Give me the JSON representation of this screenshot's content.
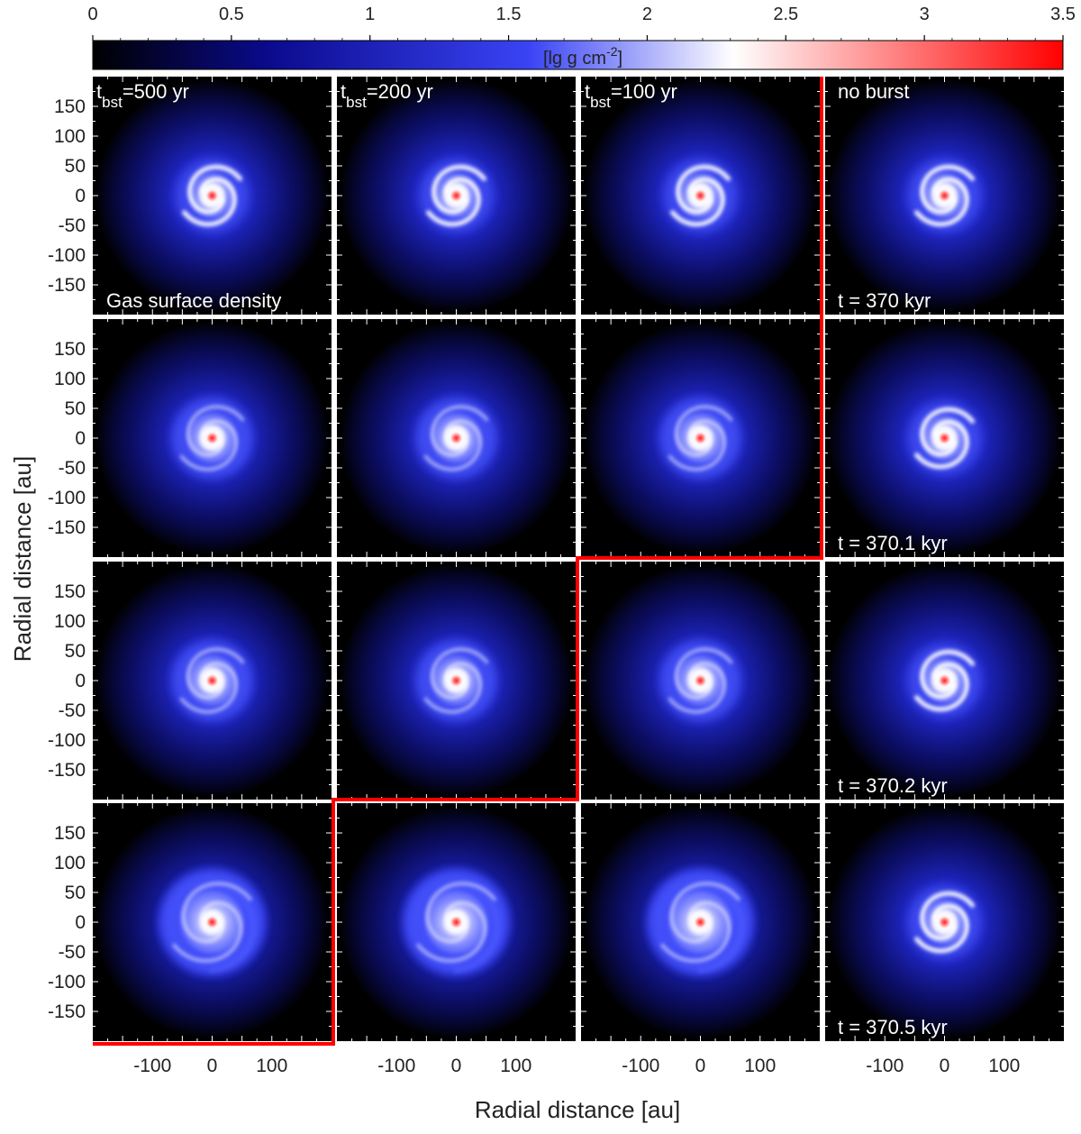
{
  "chart_data": {
    "type": "heatmap",
    "quantity": "Gas surface density",
    "colorbar": {
      "unit_label": "[lg g cm",
      "unit_exponent": "-2",
      "unit_close": "]",
      "ticks": [
        0,
        0.5,
        1,
        1.5,
        2,
        2.5,
        3,
        3.5
      ],
      "tick_labels": [
        "0",
        "0.5",
        "1",
        "1.5",
        "2",
        "2.5",
        "3",
        "3.5"
      ],
      "range": [
        0,
        3.5
      ],
      "colors": [
        "#000000",
        "#0a0a8c",
        "#3a44f5",
        "#ffffff",
        "#ff0000"
      ]
    },
    "xlabel": "Radial distance [au]",
    "ylabel": "Radial distance [au]",
    "x_ticks": [
      -100,
      0,
      100
    ],
    "x_tick_labels": [
      "-100",
      "0",
      "100"
    ],
    "y_ticks": [
      150,
      100,
      50,
      0,
      -50,
      -100,
      -150
    ],
    "y_tick_labels": [
      "150",
      "100",
      "50",
      "0",
      "-50",
      "-100",
      "-150"
    ],
    "xlim": [
      -200,
      200
    ],
    "ylim": [
      -200,
      200
    ],
    "columns": [
      {
        "prefix": "t",
        "subscript": "bst",
        "suffix": "=500 yr"
      },
      {
        "prefix": "t",
        "subscript": "bst",
        "suffix": "=200 yr"
      },
      {
        "prefix": "t",
        "subscript": "bst",
        "suffix": "=100 yr"
      },
      {
        "prefix": "no burst",
        "subscript": "",
        "suffix": ""
      }
    ],
    "row_times": [
      "t = 370 kyr",
      "t = 370.1 kyr",
      "t = 370.2 kyr",
      "t = 370.5 kyr"
    ],
    "panel_label": "Gas surface density",
    "disk_state": [
      [
        "spiral",
        "spiral",
        "spiral",
        "spiral"
      ],
      [
        "diffuse",
        "diffuse",
        "diffuse",
        "spiral"
      ],
      [
        "diffuse",
        "diffuse",
        "diffuse",
        "spiral"
      ],
      [
        "faded",
        "faded",
        "faded",
        "spiral"
      ]
    ],
    "burst_boundary_color": "#ff0000"
  }
}
